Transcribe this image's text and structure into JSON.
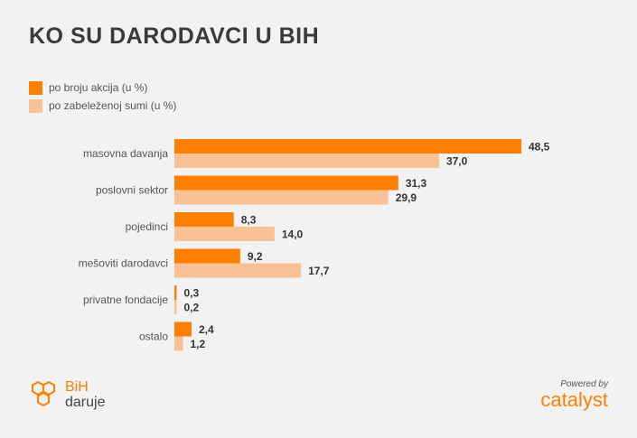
{
  "title": "KO SU DARODAVCI U BIH",
  "colors": {
    "primary": "#ff7f00",
    "secondary": "#f9c294",
    "label": "#555555",
    "value": "#333333"
  },
  "legend": [
    {
      "label": "po broju akcija (u %)",
      "color": "#ff7f00"
    },
    {
      "label": "po zabeleženoj sumi (u %)",
      "color": "#f9c294"
    }
  ],
  "chart_data": {
    "type": "bar",
    "orientation": "horizontal",
    "categories": [
      "masovna davanja",
      "poslovni sektor",
      "pojedinci",
      "mešoviti darodavci",
      "privatne fondacije",
      "ostalo"
    ],
    "series": [
      {
        "name": "po broju akcija (u %)",
        "values": [
          48.5,
          31.3,
          8.3,
          9.2,
          0.3,
          2.4
        ],
        "labels": [
          "48,5",
          "31,3",
          "8,3",
          "9,2",
          "0,3",
          "2,4"
        ]
      },
      {
        "name": "po zabeleženoj sumi (u %)",
        "values": [
          37.0,
          29.9,
          14.0,
          17.7,
          0.2,
          1.2
        ],
        "labels": [
          "37,0",
          "29,9",
          "14,0",
          "17,7",
          "0,2",
          "1,2"
        ]
      }
    ],
    "xlim": [
      0,
      48.5
    ],
    "grid": false,
    "legend_position": "top-left"
  },
  "branding": {
    "left_logo_line1": "BiH",
    "left_logo_line2": "daruje",
    "powered_by": "Powered by",
    "right_logo": "catalyst"
  }
}
